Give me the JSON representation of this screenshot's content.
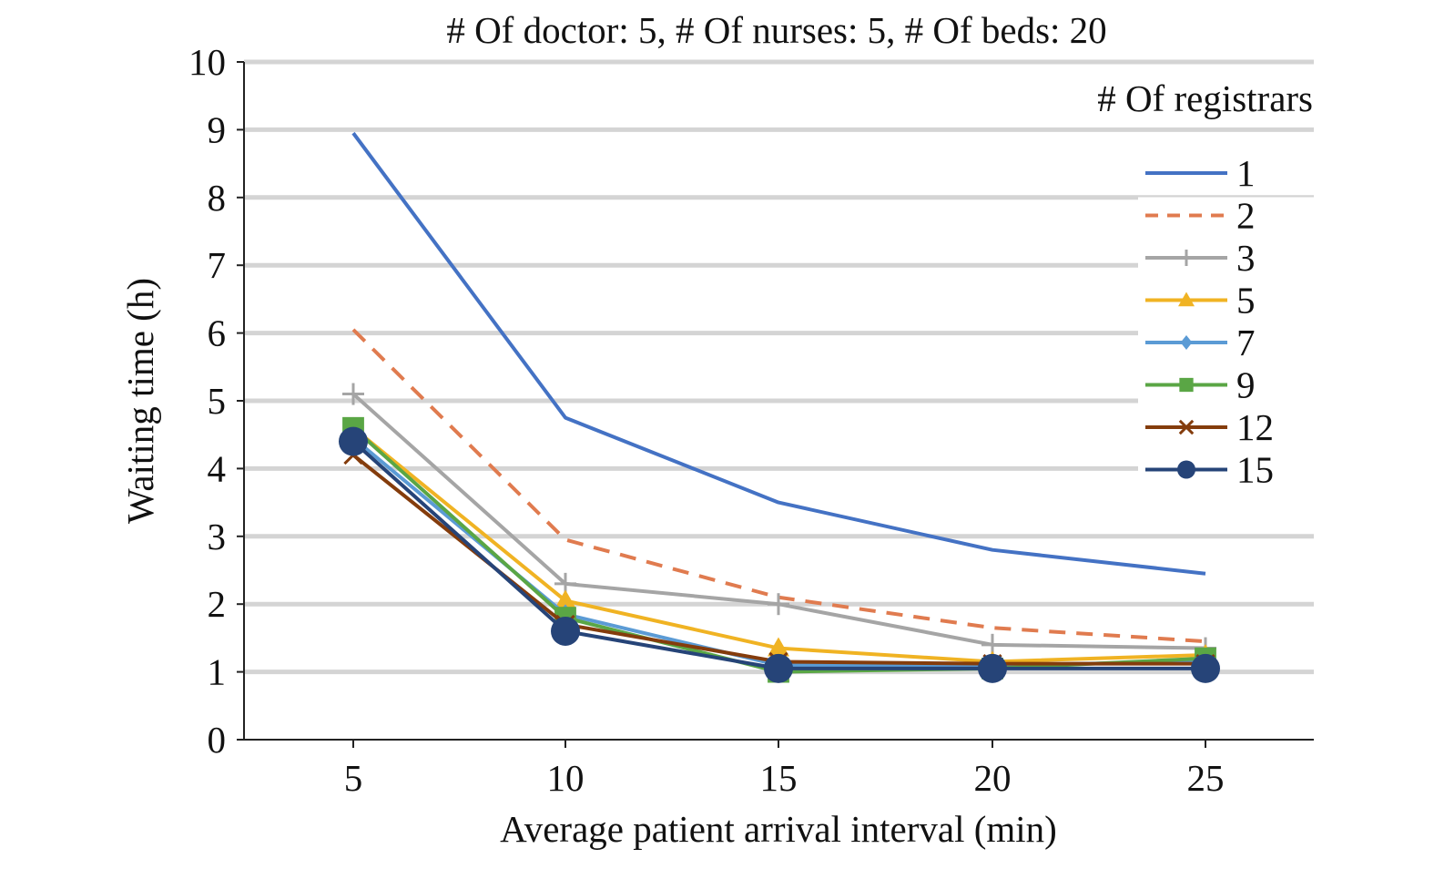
{
  "chart_data": {
    "type": "line",
    "title": "# Of doctor: 5, # Of nurses: 5, # Of beds: 20",
    "xlabel": "Average patient arrival interval (min)",
    "ylabel": "Waiting time (h)",
    "x": [
      5,
      10,
      15,
      20,
      25
    ],
    "x_ticks": [
      "5",
      "10",
      "15",
      "20",
      "25"
    ],
    "y_ticks": [
      "0",
      "1",
      "2",
      "3",
      "4",
      "5",
      "6",
      "7",
      "8",
      "9",
      "10"
    ],
    "ylim": [
      0,
      10
    ],
    "grid": "horizontal",
    "legend_title": "# Of registrars",
    "legend_position": "top-right",
    "series": [
      {
        "name": "1",
        "color": "#4472c4",
        "dash": "solid",
        "marker": "none",
        "values": [
          8.95,
          4.75,
          3.5,
          2.8,
          2.45
        ]
      },
      {
        "name": "2",
        "color": "#e07b4f",
        "dash": "dashed",
        "marker": "none",
        "values": [
          6.05,
          2.95,
          2.1,
          1.65,
          1.45
        ]
      },
      {
        "name": "3",
        "color": "#a5a5a5",
        "dash": "solid",
        "marker": "plus",
        "values": [
          5.1,
          2.3,
          2.0,
          1.4,
          1.35
        ]
      },
      {
        "name": "5",
        "color": "#f0b323",
        "dash": "solid",
        "marker": "triangle",
        "values": [
          4.6,
          2.05,
          1.35,
          1.15,
          1.25
        ]
      },
      {
        "name": "7",
        "color": "#5b9bd5",
        "dash": "solid",
        "marker": "diamond",
        "values": [
          4.45,
          1.85,
          1.1,
          1.1,
          1.15
        ]
      },
      {
        "name": "9",
        "color": "#5aa645",
        "dash": "solid",
        "marker": "square",
        "values": [
          4.6,
          1.8,
          1.0,
          1.05,
          1.2
        ]
      },
      {
        "name": "12",
        "color": "#843c0c",
        "dash": "solid",
        "marker": "x",
        "values": [
          4.2,
          1.7,
          1.15,
          1.12,
          1.12
        ]
      },
      {
        "name": "15",
        "color": "#264478",
        "dash": "solid",
        "marker": "circle",
        "values": [
          4.4,
          1.6,
          1.05,
          1.05,
          1.05
        ]
      }
    ]
  }
}
